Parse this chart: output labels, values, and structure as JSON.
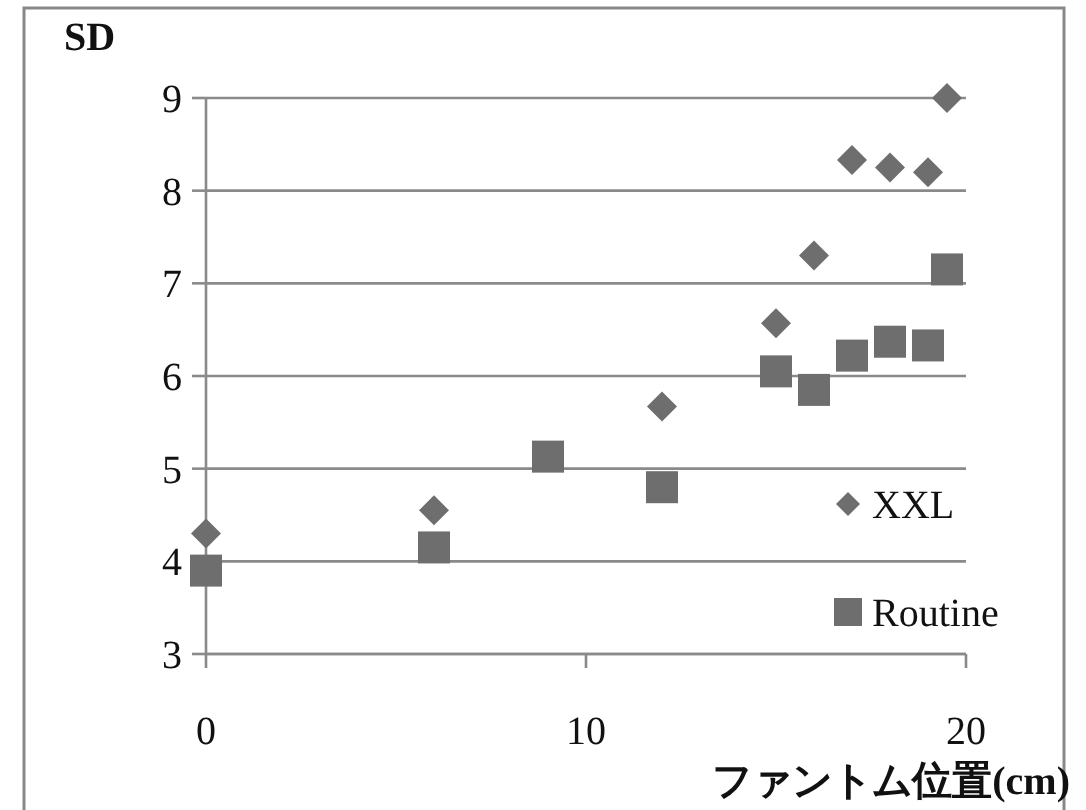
{
  "chart_data": {
    "type": "scatter",
    "ylabel": "SD",
    "xlabel": "ファントム位置(cm)",
    "xlim": [
      0,
      20
    ],
    "xticks": [
      0,
      10,
      20
    ],
    "ylim": [
      3,
      9
    ],
    "yticks": [
      3,
      4,
      5,
      6,
      7,
      8,
      9
    ],
    "grid": "y",
    "legend": "bottom right",
    "series": [
      {
        "name": "XXL",
        "color": "#6e6e6e",
        "marker": "diamond",
        "x": [
          0,
          6,
          12,
          15,
          16,
          17,
          18,
          19,
          19.5
        ],
        "values": [
          4.3,
          4.55,
          5.67,
          6.57,
          7.3,
          8.33,
          8.25,
          8.2,
          9.0
        ]
      },
      {
        "name": "Routine",
        "color": "#6e6e6e",
        "marker": "square",
        "x": [
          0,
          6,
          9,
          12,
          15,
          16,
          17,
          18,
          19,
          19.5
        ],
        "values": [
          3.9,
          4.15,
          5.13,
          4.8,
          6.05,
          5.85,
          6.22,
          6.37,
          6.33,
          7.15
        ]
      }
    ]
  }
}
